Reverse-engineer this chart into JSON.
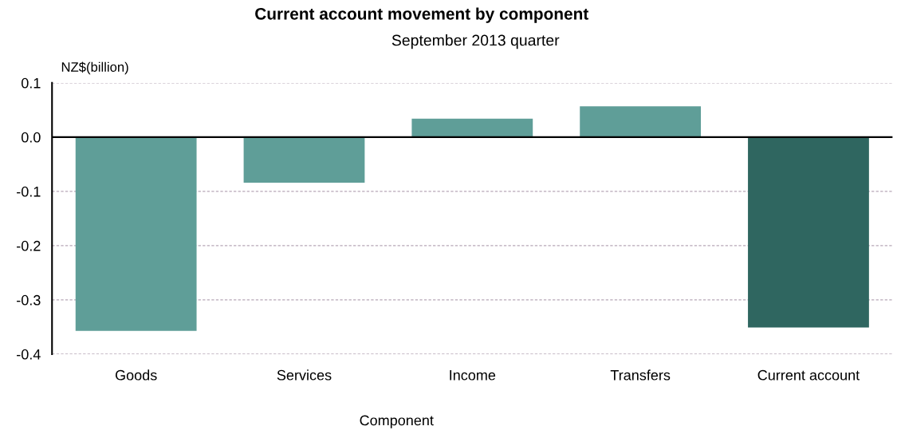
{
  "chart_data": {
    "type": "bar",
    "title": "Current account movement by component",
    "subtitle": "September 2013 quarter",
    "xlabel": "Component",
    "ylabel": "NZ$(billion)",
    "categories": [
      "Goods",
      "Services",
      "Income",
      "Transfers",
      "Current account"
    ],
    "values": [
      -0.357,
      -0.084,
      0.034,
      0.057,
      -0.351
    ],
    "colors": [
      "#5f9e98",
      "#5f9e98",
      "#5f9e98",
      "#5f9e98",
      "#2f6660"
    ],
    "ylim": [
      -0.4,
      0.1
    ],
    "yticks": [
      {
        "value": -0.4,
        "label": "-0.4"
      },
      {
        "value": -0.3,
        "label": "-0.3"
      },
      {
        "value": -0.2,
        "label": "-0.2"
      },
      {
        "value": -0.1,
        "label": "-0.1"
      },
      {
        "value": 0,
        "label": "0.0"
      },
      {
        "value": 0.1,
        "label": "0.1"
      }
    ],
    "ref_lines": [
      {
        "axis": "y",
        "value": 0,
        "color": "#000000",
        "line_style": "solid"
      }
    ],
    "grid": "y"
  }
}
